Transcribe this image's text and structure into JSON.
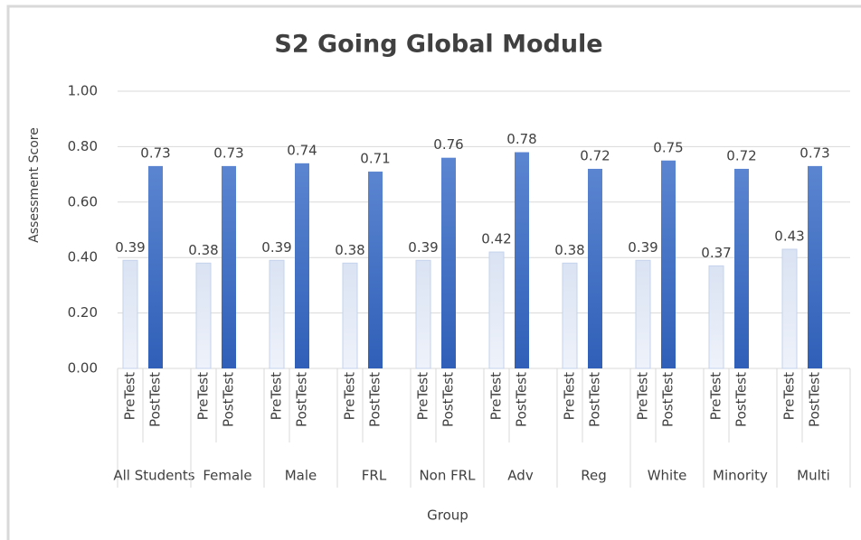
{
  "chart_data": {
    "type": "bar",
    "title": "S2 Going Global  Module",
    "x_label": "Group",
    "y_label": "Assessment Score",
    "categories": [
      "All Students",
      "Female",
      "Male",
      "FRL",
      "Non FRL",
      "Adv",
      "Reg",
      "White",
      "Minority",
      "Multi"
    ],
    "series": [
      {
        "name": "PreTest",
        "color": "#dae3f3",
        "values": [
          0.39,
          0.38,
          0.39,
          0.38,
          0.39,
          0.42,
          0.38,
          0.39,
          0.37,
          0.43
        ]
      },
      {
        "name": "PostTest",
        "color": "#4472c4",
        "values": [
          0.73,
          0.73,
          0.74,
          0.71,
          0.76,
          0.78,
          0.72,
          0.75,
          0.72,
          0.73
        ]
      }
    ],
    "ylim": [
      0,
      1
    ],
    "yticks": [
      {
        "value": 0,
        "label": "0.00"
      },
      {
        "value": 0.2,
        "label": "0.20"
      },
      {
        "value": 0.4,
        "label": "0.40"
      },
      {
        "value": 0.6,
        "label": "0.60"
      },
      {
        "value": 0.8,
        "label": "0.80"
      },
      {
        "value": 1,
        "label": "1.00"
      }
    ],
    "grid": true
  }
}
